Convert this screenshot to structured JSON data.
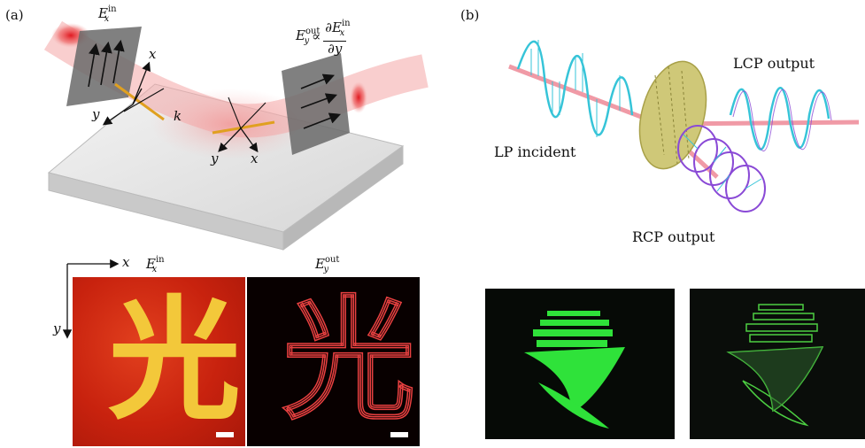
{
  "panel_a": {
    "label": "(a)",
    "field_in": {
      "base": "E",
      "sub": "x",
      "sup": "in"
    },
    "field_out_eq": {
      "base": "E",
      "sub": "y",
      "sup": "out",
      "prop": "∝",
      "num_base": "∂E",
      "num_sub": "x",
      "num_sup": "in",
      "den": "∂y"
    },
    "axes_left": {
      "x": "x",
      "y": "y",
      "k": "k"
    },
    "axes_right": {
      "x": "x",
      "y": "y"
    },
    "image_axis_x": "x",
    "image_axis_y": "y",
    "image_left_label": {
      "base": "E",
      "sub": "x",
      "sup": "in"
    },
    "image_right_label": {
      "base": "E",
      "sub": "y",
      "sup": "out"
    },
    "glyph": "光"
  },
  "panel_b": {
    "label": "(b)",
    "lp_incident": "LP incident",
    "lcp_output": "LCP output",
    "rcp_output": "RCP output"
  },
  "colors": {
    "laser_red": "#e8323a",
    "wave_cyan": "#36c4d8",
    "wave_purple": "#8a4ad6",
    "metasurface": "#cfc878",
    "green_image": "#2fe23a"
  }
}
